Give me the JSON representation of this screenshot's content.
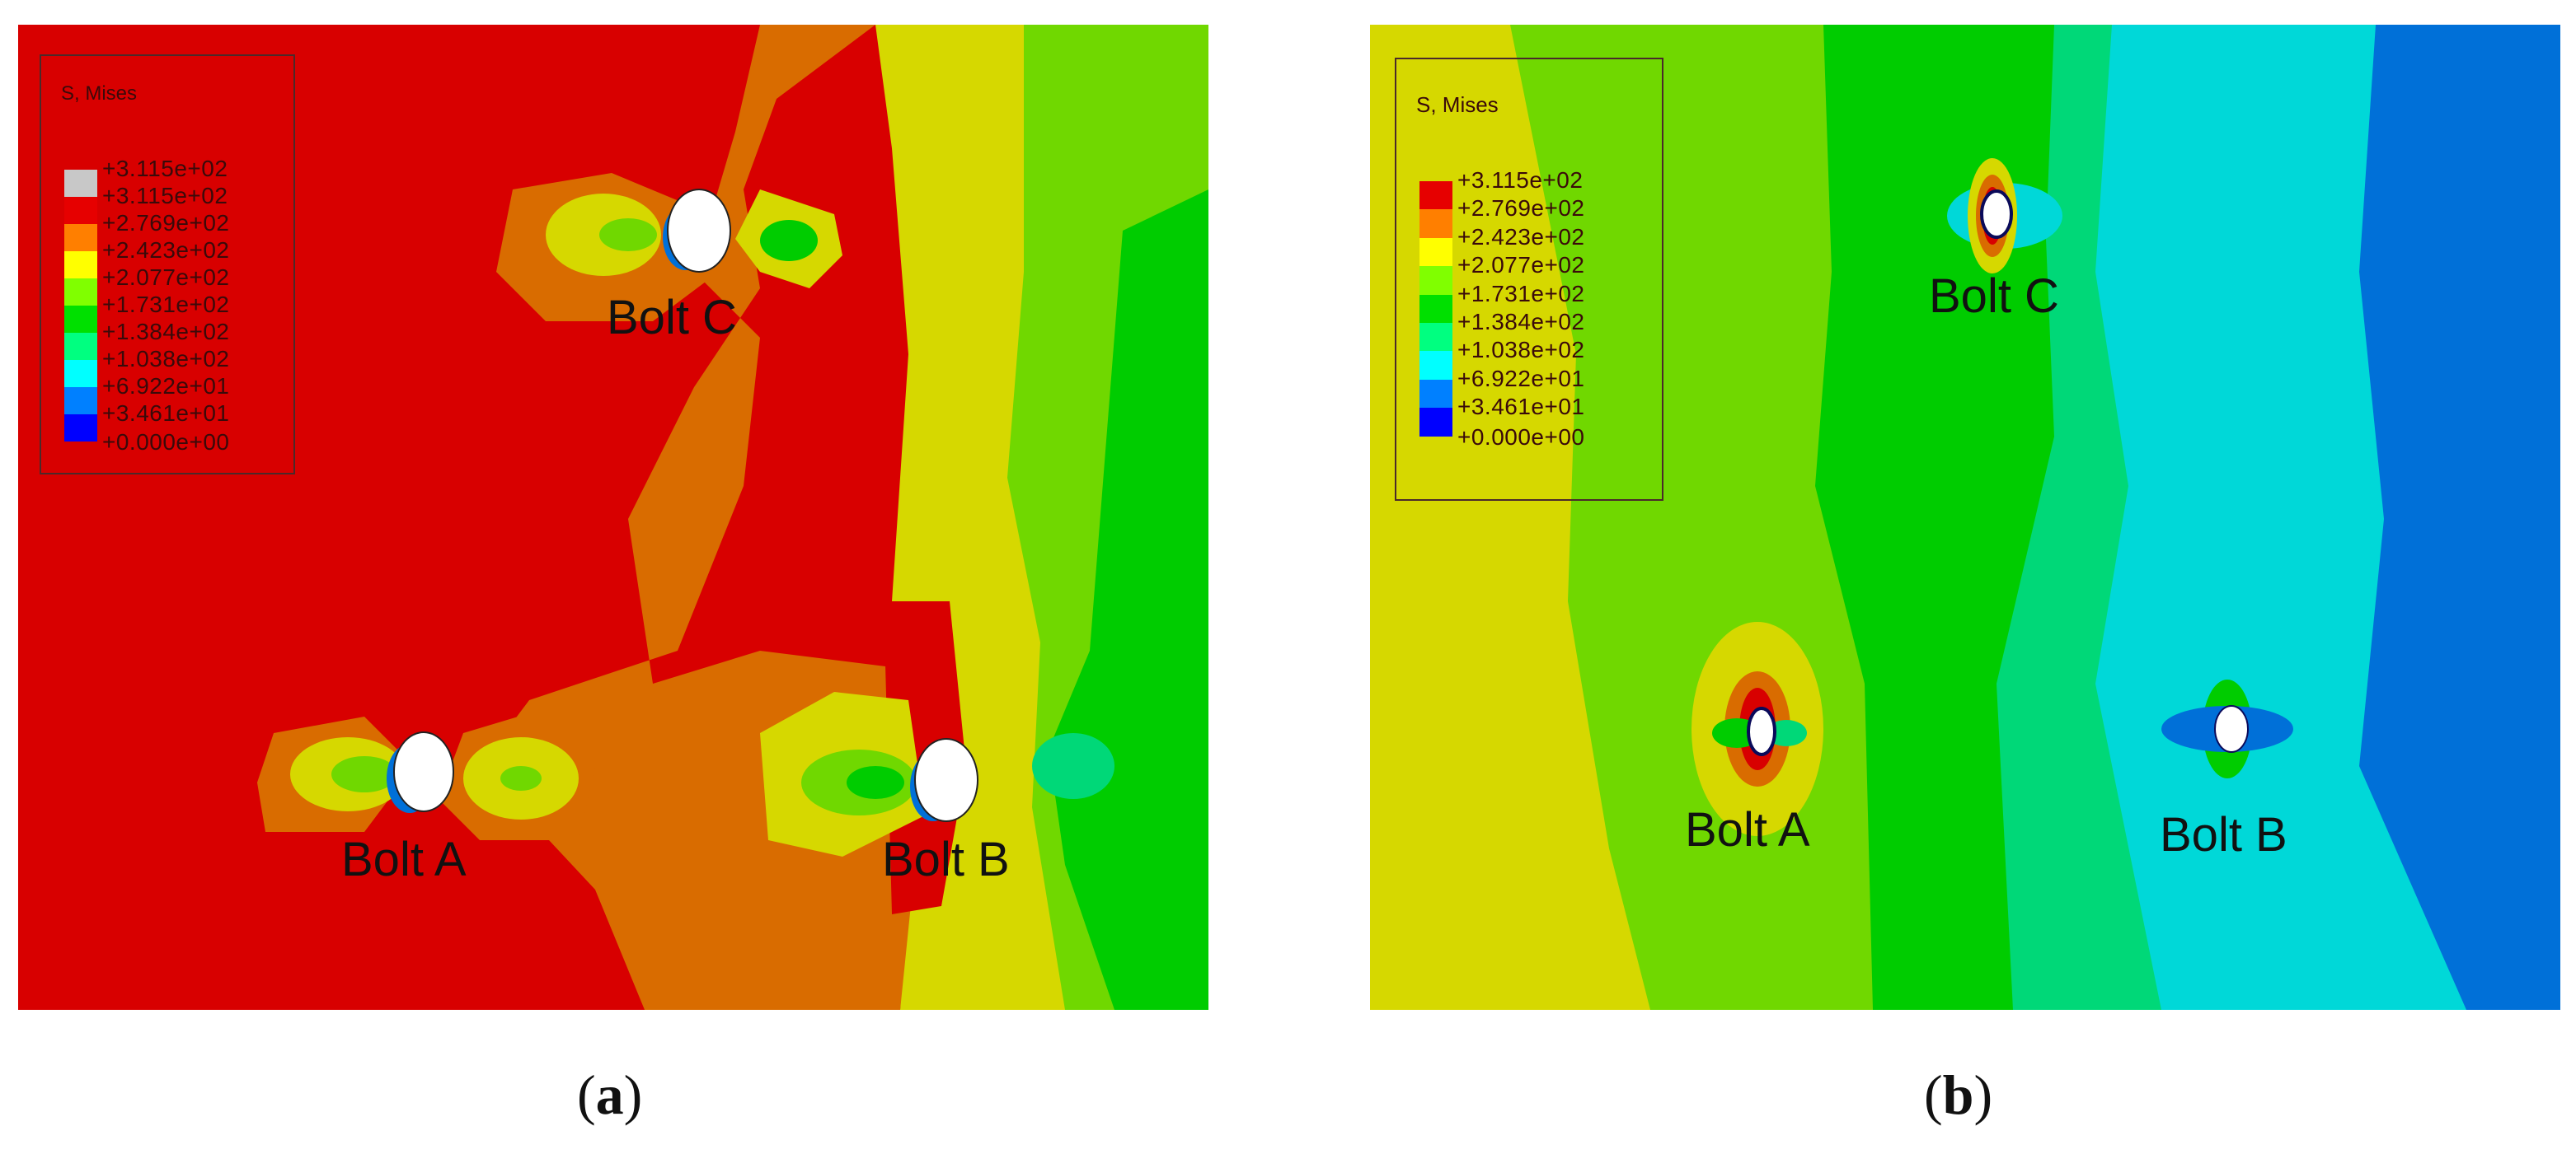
{
  "panels": [
    {
      "id": "a",
      "caption_letter": "a",
      "legend": {
        "title": "S, Mises",
        "labels": [
          "+3.115e+02",
          "+3.115e+02",
          "+2.769e+02",
          "+2.423e+02",
          "+2.077e+02",
          "+1.731e+02",
          "+1.384e+02",
          "+1.038e+02",
          "+6.922e+01",
          "+3.461e+01",
          "+0.000e+00"
        ],
        "colors": [
          "#c8c8c8",
          "#e60000",
          "#ff7f00",
          "#ffff00",
          "#80ff00",
          "#00e000",
          "#00ff80",
          "#00ffff",
          "#0080ff",
          "#0000ff"
        ]
      },
      "bolts": [
        "Bolt C",
        "Bolt A",
        "Bolt B"
      ]
    },
    {
      "id": "b",
      "caption_letter": "b",
      "legend": {
        "title": "S, Mises",
        "labels": [
          "+3.115e+02",
          "+2.769e+02",
          "+2.423e+02",
          "+2.077e+02",
          "+1.731e+02",
          "+1.384e+02",
          "+1.038e+02",
          "+6.922e+01",
          "+3.461e+01",
          "+0.000e+00"
        ],
        "colors": [
          "#e60000",
          "#ff7f00",
          "#ffff00",
          "#80ff00",
          "#00e000",
          "#00ff80",
          "#00ffff",
          "#0080ff",
          "#0000ff"
        ]
      },
      "bolts": [
        "Bolt C",
        "Bolt A",
        "Bolt B"
      ]
    }
  ],
  "colors": {
    "red": "#d80000",
    "orange": "#d96c00",
    "yellow": "#d6d800",
    "lime": "#70d800",
    "green": "#00cc00",
    "spring_green": "#00d878",
    "cyan": "#00d8d8",
    "blue": "#0070d8"
  }
}
